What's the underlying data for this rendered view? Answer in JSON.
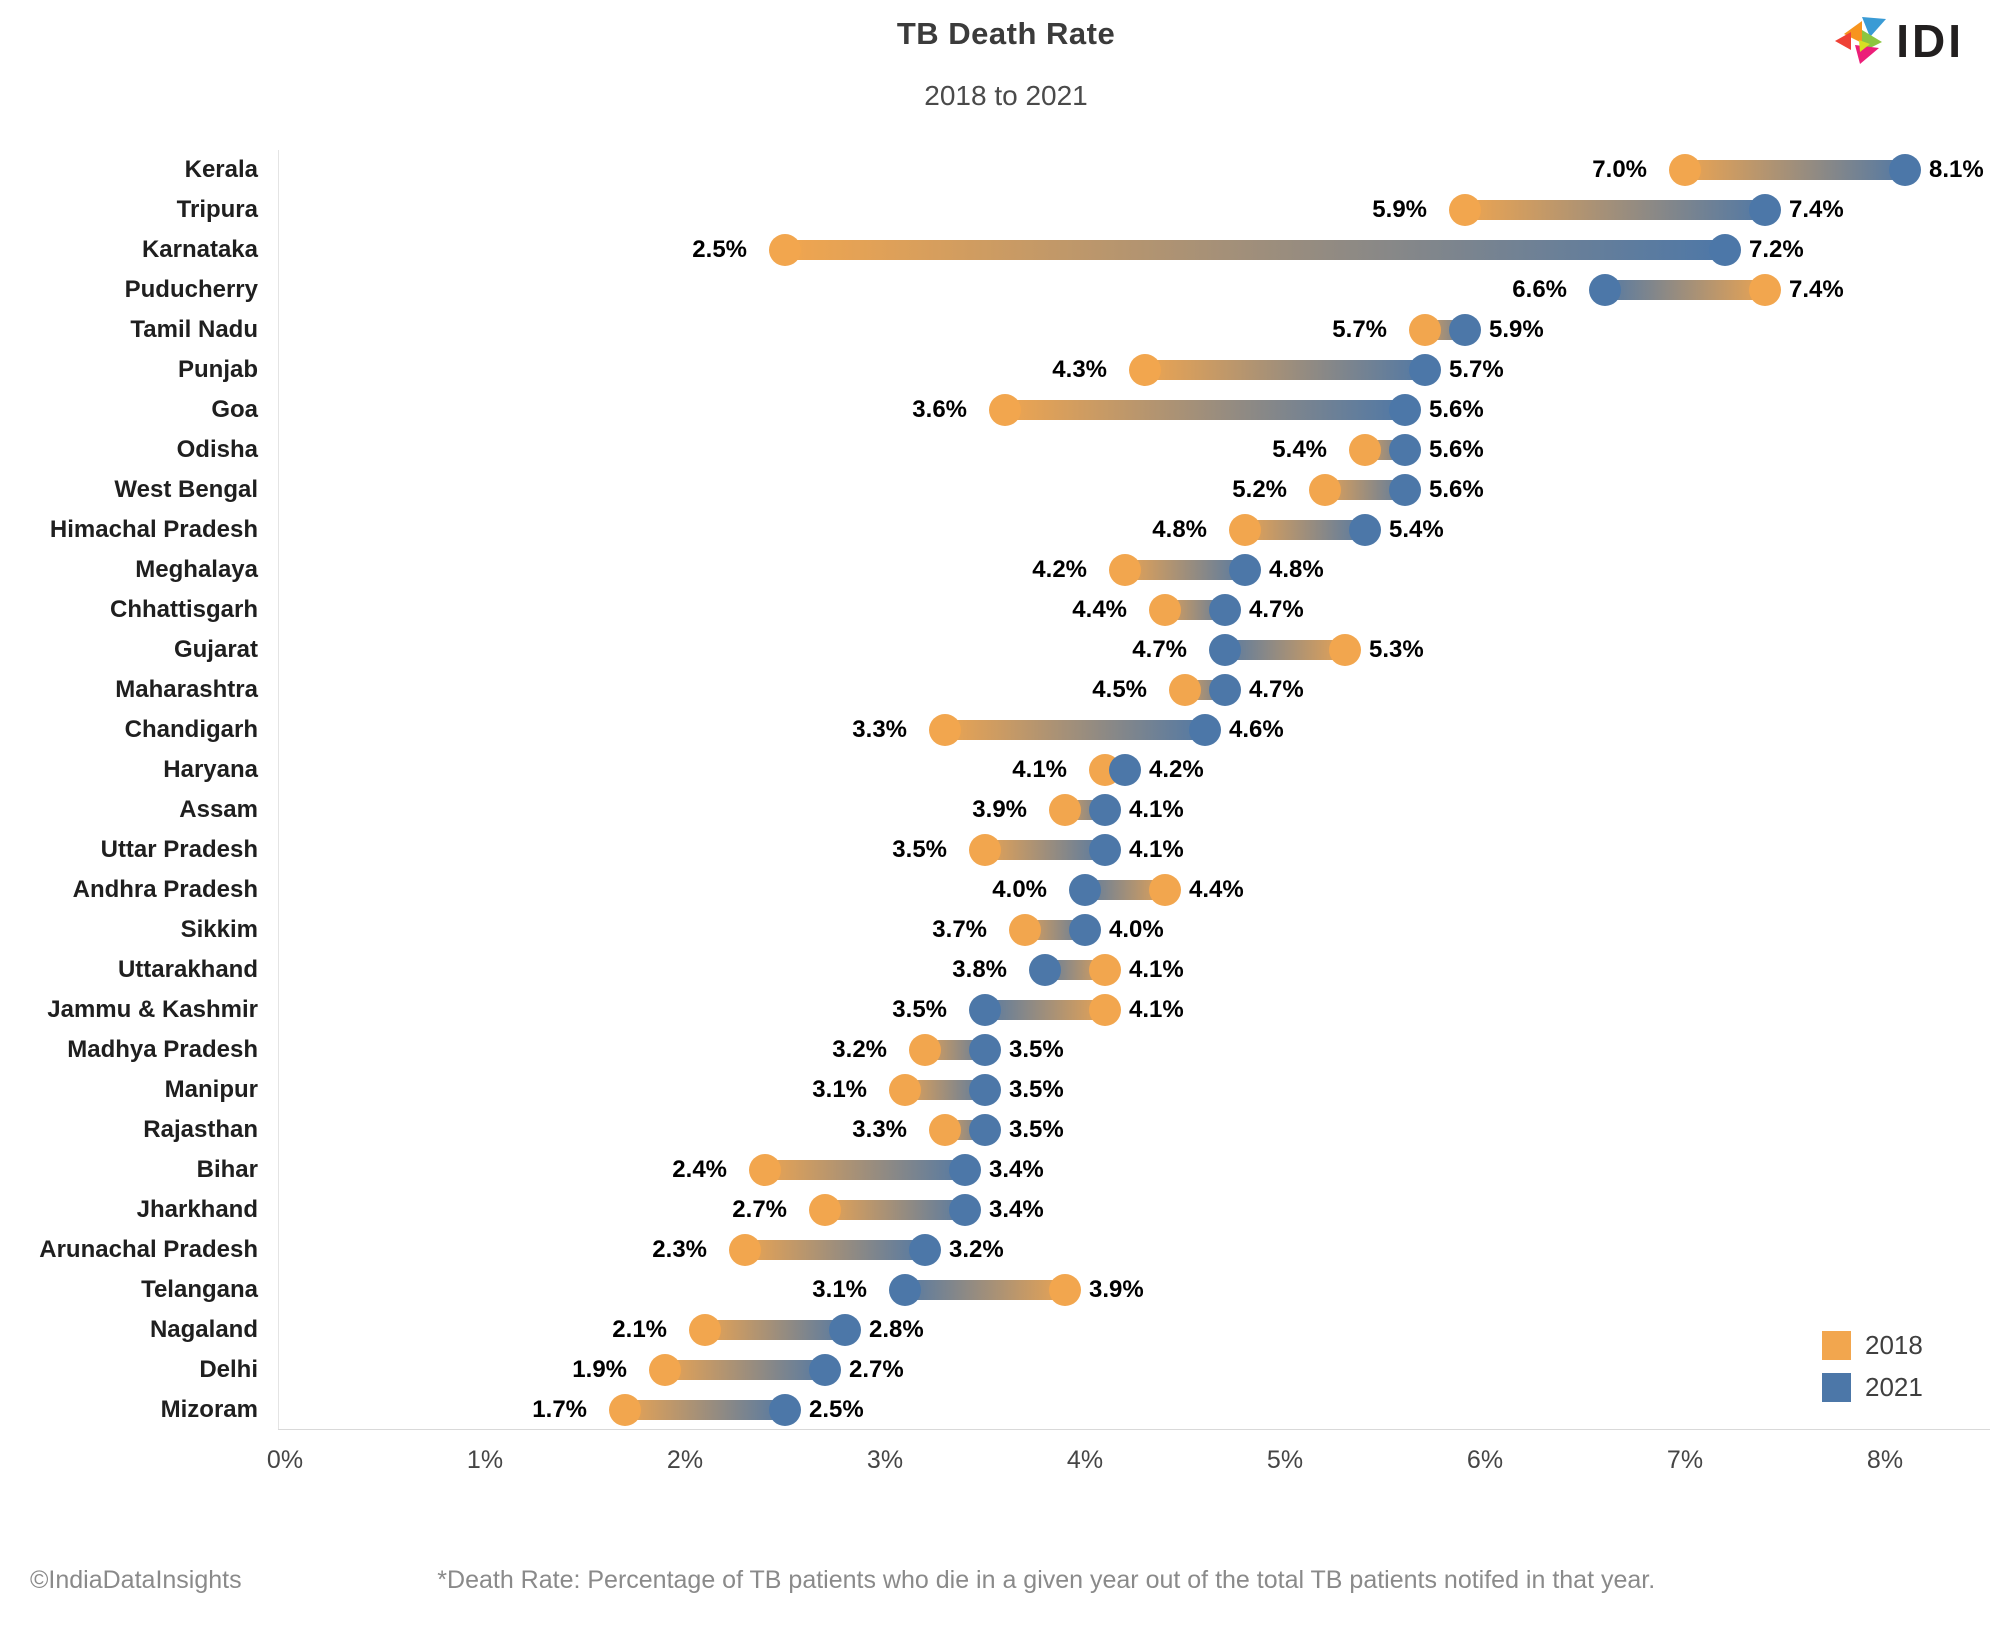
{
  "header": {
    "logo_text": "IDI"
  },
  "colors": {
    "year_2018": "#F2A64E",
    "year_2021": "#4C77A8",
    "title_text": "#3b3b3b",
    "axis_line": "#d9d9d9"
  },
  "legend": {
    "position": "bottom-right",
    "items": [
      {
        "label": "2018",
        "color": "#F2A64E"
      },
      {
        "label": "2021",
        "color": "#4C77A8"
      }
    ]
  },
  "chart_data": {
    "type": "scatter",
    "subtype": "dumbbell-horizontal",
    "title": "TB Death Rate",
    "subtitle": "2018 to 2021",
    "xlabel": "",
    "ylabel": "",
    "xlim": [
      0,
      8.6
    ],
    "x_ticks": [
      "0%",
      "1%",
      "2%",
      "3%",
      "4%",
      "5%",
      "6%",
      "7%",
      "8%"
    ],
    "grid": false,
    "legend_position": "bottom-right",
    "value_unit": "%",
    "categories": [
      "Kerala",
      "Tripura",
      "Karnataka",
      "Puducherry",
      "Tamil Nadu",
      "Punjab",
      "Goa",
      "Odisha",
      "West Bengal",
      "Himachal Pradesh",
      "Meghalaya",
      "Chhattisgarh",
      "Gujarat",
      "Maharashtra",
      "Chandigarh",
      "Haryana",
      "Assam",
      "Uttar Pradesh",
      "Andhra Pradesh",
      "Sikkim",
      "Uttarakhand",
      "Jammu & Kashmir",
      "Madhya Pradesh",
      "Manipur",
      "Rajasthan",
      "Bihar",
      "Jharkhand",
      "Arunachal Pradesh",
      "Telangana",
      "Nagaland",
      "Delhi",
      "Mizoram"
    ],
    "series": [
      {
        "name": "2018",
        "values": [
          7.0,
          5.9,
          2.5,
          7.4,
          5.7,
          4.3,
          3.6,
          5.4,
          5.2,
          4.8,
          4.2,
          4.4,
          5.3,
          4.5,
          3.3,
          4.1,
          3.9,
          3.5,
          4.4,
          3.7,
          4.1,
          4.1,
          3.2,
          3.1,
          3.3,
          2.4,
          2.7,
          2.3,
          3.9,
          2.1,
          1.9,
          1.7
        ]
      },
      {
        "name": "2021",
        "values": [
          8.1,
          7.4,
          7.2,
          6.6,
          5.9,
          5.7,
          5.6,
          5.6,
          5.6,
          5.4,
          4.8,
          4.7,
          4.7,
          4.7,
          4.6,
          4.2,
          4.1,
          4.1,
          4.0,
          4.0,
          3.8,
          3.5,
          3.5,
          3.5,
          3.5,
          3.4,
          3.4,
          3.2,
          3.1,
          2.8,
          2.7,
          2.5
        ]
      }
    ]
  },
  "footer": {
    "copyright": "©IndiaDataInsights",
    "note": "*Death Rate: Percentage of TB patients who die in a given year out of the total TB patients notifed in that year."
  }
}
